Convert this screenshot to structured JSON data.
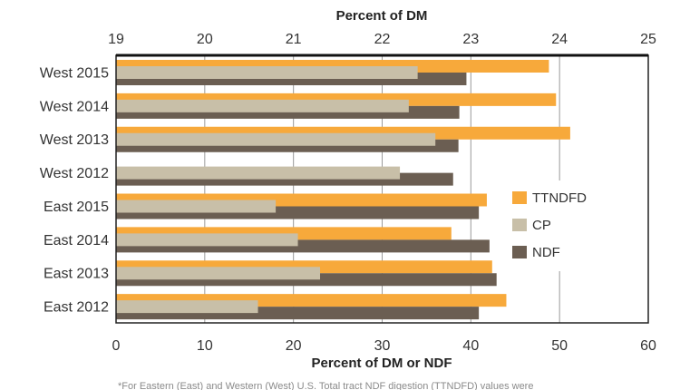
{
  "chart_data": {
    "type": "bar",
    "orientation": "horizontal",
    "categories": [
      "West 2015",
      "West 2014",
      "West 2013",
      "West 2012",
      "East 2015",
      "East 2014",
      "East 2013",
      "East 2012"
    ],
    "top_axis": {
      "label": "Percent of DM",
      "range": [
        19,
        25
      ],
      "ticks": [
        19,
        20,
        21,
        22,
        23,
        24,
        25
      ]
    },
    "bottom_axis": {
      "label": "Percent of DM or NDF",
      "range": [
        0,
        60
      ],
      "ticks": [
        0,
        10,
        20,
        30,
        40,
        50,
        60
      ]
    },
    "series": [
      {
        "name": "TTNDFD",
        "color": "#f7a93b",
        "axis": "bottom",
        "values": [
          48.8,
          49.6,
          51.2,
          null,
          41.8,
          37.8,
          42.4,
          44.0
        ]
      },
      {
        "name": "CP",
        "color": "#c8bfa8",
        "axis": "top",
        "values": [
          22.4,
          22.3,
          22.6,
          22.2,
          20.8,
          21.05,
          21.3,
          20.6
        ]
      },
      {
        "name": "NDF",
        "color": "#6b5e52",
        "axis": "bottom",
        "values": [
          39.5,
          38.7,
          38.6,
          38.0,
          40.9,
          42.1,
          42.9,
          40.9
        ]
      }
    ],
    "legend_position": "right",
    "grid": "vertical",
    "footnote": "*For Eastern (East) and Western (West) U.S. Total tract NDF digestion (TTNDFD) values were"
  }
}
